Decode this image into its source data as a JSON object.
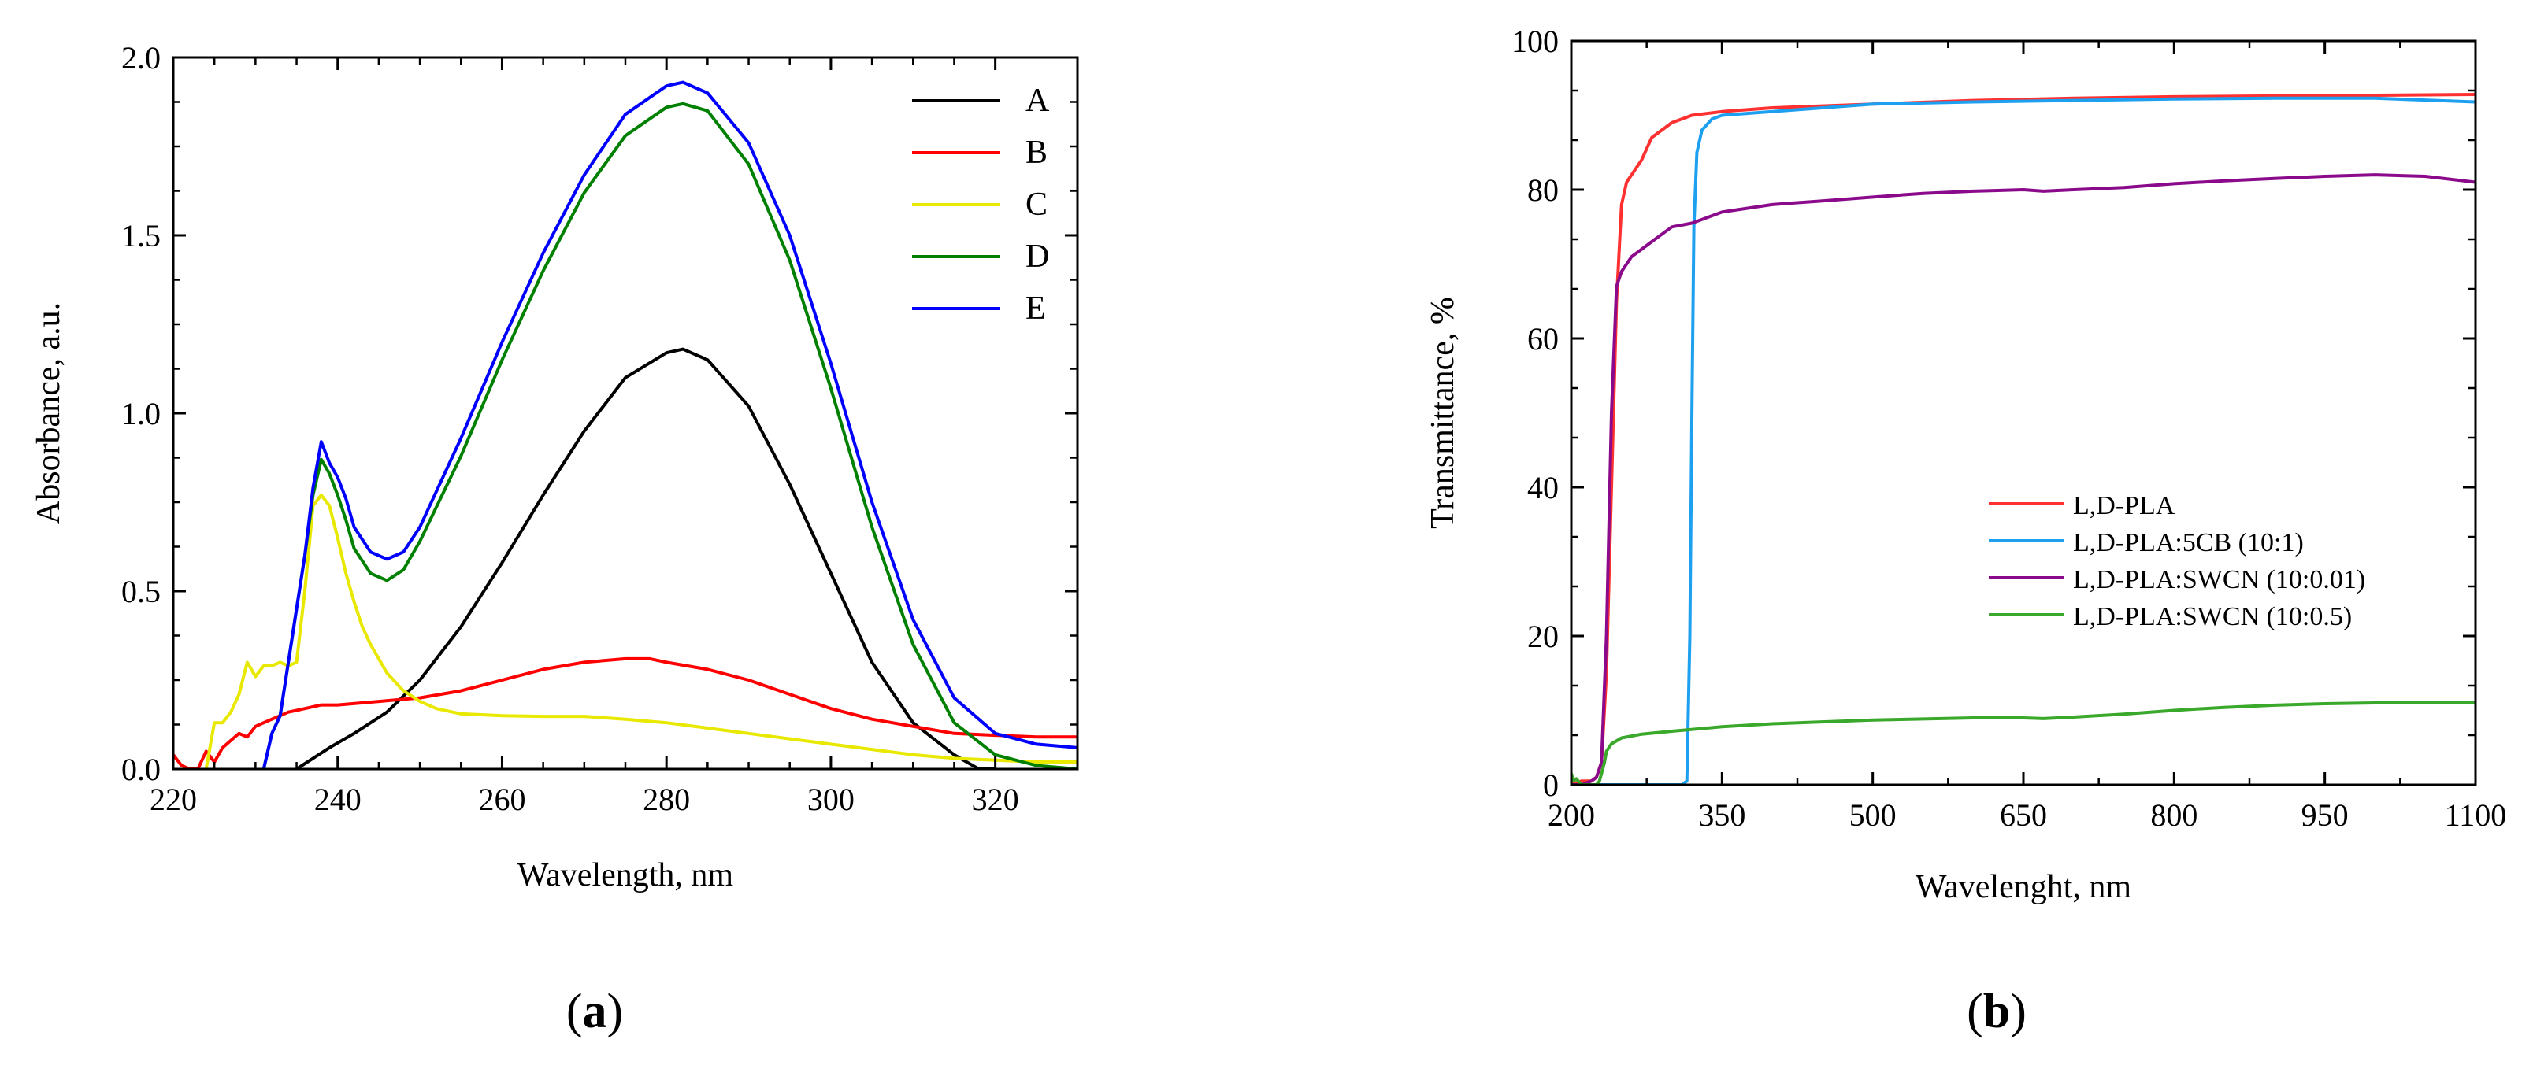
{
  "chart_data": [
    {
      "type": "line",
      "panel_label": "a",
      "xlabel": "Wavelength, nm",
      "ylabel": "Absorbance, a.u.",
      "xlim": [
        220,
        330
      ],
      "ylim": [
        0.0,
        2.0
      ],
      "xticks": [
        220,
        240,
        260,
        280,
        300,
        320
      ],
      "xtick_labels": [
        "220",
        "240",
        "260",
        "280",
        "300",
        "320"
      ],
      "yticks": [
        0.0,
        0.5,
        1.0,
        1.5,
        2.0
      ],
      "ytick_labels": [
        "0.0",
        "0.5",
        "1.0",
        "1.5",
        "2.0"
      ],
      "legend_position": "top-right",
      "series": [
        {
          "name": "A",
          "color": "#000000",
          "x": [
            235,
            237,
            239,
            242,
            246,
            250,
            255,
            260,
            265,
            270,
            275,
            280,
            282,
            285,
            290,
            295,
            300,
            305,
            310,
            315,
            318,
            320
          ],
          "y": [
            0.0,
            0.03,
            0.06,
            0.1,
            0.16,
            0.25,
            0.4,
            0.58,
            0.77,
            0.95,
            1.1,
            1.17,
            1.18,
            1.15,
            1.02,
            0.8,
            0.55,
            0.3,
            0.13,
            0.04,
            0.0,
            0.0
          ]
        },
        {
          "name": "B",
          "color": "#ff0000",
          "x": [
            220,
            221,
            222,
            223,
            224,
            225,
            226,
            227,
            228,
            229,
            230,
            231,
            232,
            234,
            236,
            238,
            240,
            245,
            250,
            255,
            260,
            265,
            270,
            275,
            278,
            280,
            285,
            290,
            295,
            300,
            305,
            310,
            315,
            320,
            325,
            330
          ],
          "y": [
            0.04,
            0.01,
            0.0,
            0.0,
            0.05,
            0.02,
            0.06,
            0.08,
            0.1,
            0.09,
            0.12,
            0.13,
            0.14,
            0.16,
            0.17,
            0.18,
            0.18,
            0.19,
            0.2,
            0.22,
            0.25,
            0.28,
            0.3,
            0.31,
            0.31,
            0.3,
            0.28,
            0.25,
            0.21,
            0.17,
            0.14,
            0.12,
            0.1,
            0.095,
            0.09,
            0.09
          ]
        },
        {
          "name": "C",
          "color": "#e8e800",
          "x": [
            224,
            225,
            226,
            227,
            228,
            229,
            230,
            231,
            232,
            233,
            234,
            235,
            236,
            237,
            238,
            239,
            240,
            241,
            242,
            243,
            244,
            246,
            248,
            250,
            252,
            255,
            260,
            265,
            270,
            275,
            280,
            285,
            290,
            295,
            300,
            305,
            310,
            315,
            320,
            325,
            330
          ],
          "y": [
            0.0,
            0.13,
            0.13,
            0.16,
            0.21,
            0.3,
            0.26,
            0.29,
            0.29,
            0.3,
            0.29,
            0.3,
            0.5,
            0.74,
            0.77,
            0.74,
            0.65,
            0.55,
            0.47,
            0.4,
            0.35,
            0.27,
            0.22,
            0.19,
            0.17,
            0.155,
            0.15,
            0.148,
            0.148,
            0.14,
            0.13,
            0.115,
            0.1,
            0.085,
            0.07,
            0.055,
            0.04,
            0.03,
            0.025,
            0.02,
            0.02
          ]
        },
        {
          "name": "D",
          "color": "#008000",
          "x": [
            231,
            232,
            233,
            234,
            235,
            236,
            237,
            238,
            239,
            240,
            241,
            242,
            244,
            246,
            248,
            250,
            255,
            260,
            265,
            270,
            275,
            280,
            282,
            285,
            290,
            295,
            300,
            305,
            310,
            315,
            320,
            325,
            330
          ],
          "y": [
            0.0,
            0.1,
            0.15,
            0.3,
            0.45,
            0.6,
            0.77,
            0.87,
            0.83,
            0.77,
            0.7,
            0.62,
            0.55,
            0.53,
            0.56,
            0.64,
            0.88,
            1.15,
            1.4,
            1.62,
            1.78,
            1.86,
            1.87,
            1.85,
            1.7,
            1.43,
            1.07,
            0.68,
            0.35,
            0.13,
            0.04,
            0.01,
            0.0
          ]
        },
        {
          "name": "E",
          "color": "#0000ff",
          "x": [
            231,
            232,
            233,
            234,
            235,
            236,
            237,
            238,
            239,
            240,
            241,
            242,
            244,
            246,
            248,
            250,
            255,
            260,
            265,
            270,
            275,
            280,
            282,
            285,
            290,
            295,
            300,
            305,
            310,
            315,
            320,
            325,
            330
          ],
          "y": [
            0.0,
            0.1,
            0.15,
            0.3,
            0.45,
            0.6,
            0.79,
            0.92,
            0.86,
            0.82,
            0.76,
            0.68,
            0.61,
            0.59,
            0.61,
            0.68,
            0.93,
            1.2,
            1.45,
            1.67,
            1.84,
            1.92,
            1.93,
            1.9,
            1.76,
            1.5,
            1.14,
            0.75,
            0.42,
            0.2,
            0.1,
            0.07,
            0.06
          ]
        }
      ]
    },
    {
      "type": "line",
      "panel_label": "b",
      "xlabel": "Wavelenght, nm",
      "ylabel": "Transmittance, %",
      "xlim": [
        200,
        1100
      ],
      "ylim": [
        0,
        100
      ],
      "xticks": [
        200,
        350,
        500,
        650,
        800,
        950,
        1100
      ],
      "xtick_labels": [
        "200",
        "350",
        "500",
        "650",
        "800",
        "950",
        "1100"
      ],
      "yticks": [
        0,
        20,
        40,
        60,
        80,
        100
      ],
      "ytick_labels": [
        "0",
        "20",
        "40",
        "60",
        "80",
        "100"
      ],
      "legend_position": "center-right",
      "series": [
        {
          "name": "L,D-PLA",
          "color": "#ff3030",
          "x": [
            200,
            210,
            220,
            225,
            230,
            235,
            240,
            245,
            250,
            255,
            260,
            270,
            280,
            290,
            300,
            320,
            350,
            400,
            500,
            600,
            700,
            800,
            900,
            1000,
            1100
          ],
          "y": [
            0,
            0.5,
            0.5,
            1,
            3,
            15,
            40,
            65,
            78,
            81,
            82,
            84,
            87,
            88,
            89,
            90,
            90.5,
            91,
            91.5,
            92,
            92.3,
            92.5,
            92.6,
            92.7,
            92.8
          ]
        },
        {
          "name": "L,D-PLA:5CB (10:1)",
          "color": "#1ea0f0",
          "x": [
            200,
            250,
            300,
            310,
            315,
            318,
            320,
            322,
            325,
            330,
            340,
            350,
            400,
            500,
            600,
            700,
            800,
            900,
            1000,
            1100
          ],
          "y": [
            0,
            0,
            0,
            0,
            0.5,
            20,
            50,
            75,
            85,
            88,
            89.5,
            90,
            90.5,
            91.5,
            91.8,
            92,
            92.2,
            92.3,
            92.3,
            91.8
          ]
        },
        {
          "name": "L,D-PLA:SWCN (10:0.01)",
          "color": "#8b0a8b",
          "x": [
            200,
            210,
            220,
            225,
            230,
            235,
            240,
            245,
            250,
            255,
            260,
            270,
            280,
            290,
            300,
            320,
            350,
            400,
            450,
            500,
            550,
            600,
            650,
            670,
            700,
            750,
            800,
            850,
            900,
            950,
            1000,
            1050,
            1100
          ],
          "y": [
            0,
            0,
            0.5,
            1,
            3,
            20,
            50,
            67,
            69,
            70,
            71,
            72,
            73,
            74,
            75,
            75.5,
            77,
            78,
            78.5,
            79,
            79.5,
            79.8,
            80,
            79.8,
            80,
            80.3,
            80.8,
            81.2,
            81.5,
            81.8,
            82,
            81.8,
            81
          ]
        },
        {
          "name": "L,D-PLA:SWCN (10:0.5)",
          "color": "#3aa82a",
          "x": [
            200,
            202,
            205,
            210,
            215,
            220,
            225,
            228,
            230,
            233,
            235,
            240,
            250,
            270,
            300,
            350,
            400,
            500,
            600,
            650,
            670,
            700,
            750,
            800,
            850,
            900,
            950,
            1000,
            1050,
            1100
          ],
          "y": [
            1.5,
            0.5,
            0.8,
            0,
            0,
            0,
            0,
            0.5,
            1.5,
            3,
            4.5,
            5.5,
            6.3,
            6.8,
            7.2,
            7.8,
            8.2,
            8.7,
            9,
            9,
            8.9,
            9.1,
            9.5,
            10,
            10.4,
            10.7,
            10.9,
            11,
            11,
            11
          ]
        }
      ]
    }
  ]
}
